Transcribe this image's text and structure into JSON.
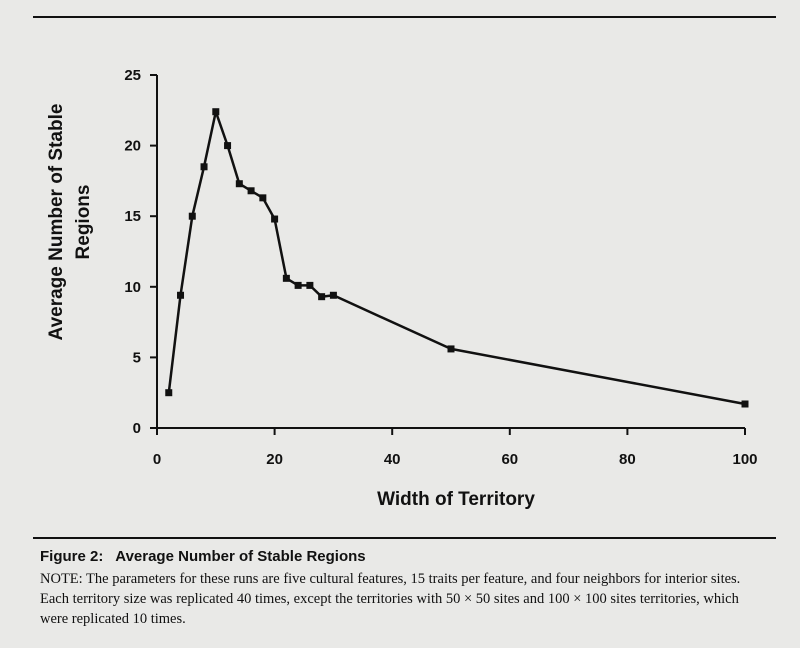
{
  "figure": {
    "label": "Figure 2:",
    "title": "Average Number of Stable Regions",
    "note": "NOTE: The parameters for these runs are five cultural features, 15 traits per feature, and four neighbors for interior sites. Each territory size was replicated 40 times, except the territories with 50 × 50 sites and 100 × 100 sites territories, which were replicated 10 times."
  },
  "chart_data": {
    "type": "line",
    "xlabel": "Width of Territory",
    "ylabel": "Average Number of Stable Regions",
    "ylabel_lines": [
      "Average  Number  of  Stable",
      "Regions"
    ],
    "xlim": [
      0,
      100
    ],
    "ylim": [
      0,
      25
    ],
    "xticks": [
      0,
      20,
      40,
      60,
      80,
      100
    ],
    "yticks": [
      0,
      5,
      10,
      15,
      20,
      25
    ],
    "marker": "square",
    "color": "#111111",
    "series": [
      {
        "x": [
          2,
          4,
          6,
          8,
          10,
          12,
          14,
          16,
          18,
          20,
          22,
          24,
          26,
          28,
          30,
          50,
          100
        ],
        "y": [
          2.5,
          9.4,
          15.0,
          18.5,
          22.4,
          20.0,
          17.3,
          16.8,
          16.3,
          14.8,
          10.6,
          10.1,
          10.1,
          9.3,
          9.4,
          5.6,
          1.7
        ]
      }
    ]
  }
}
